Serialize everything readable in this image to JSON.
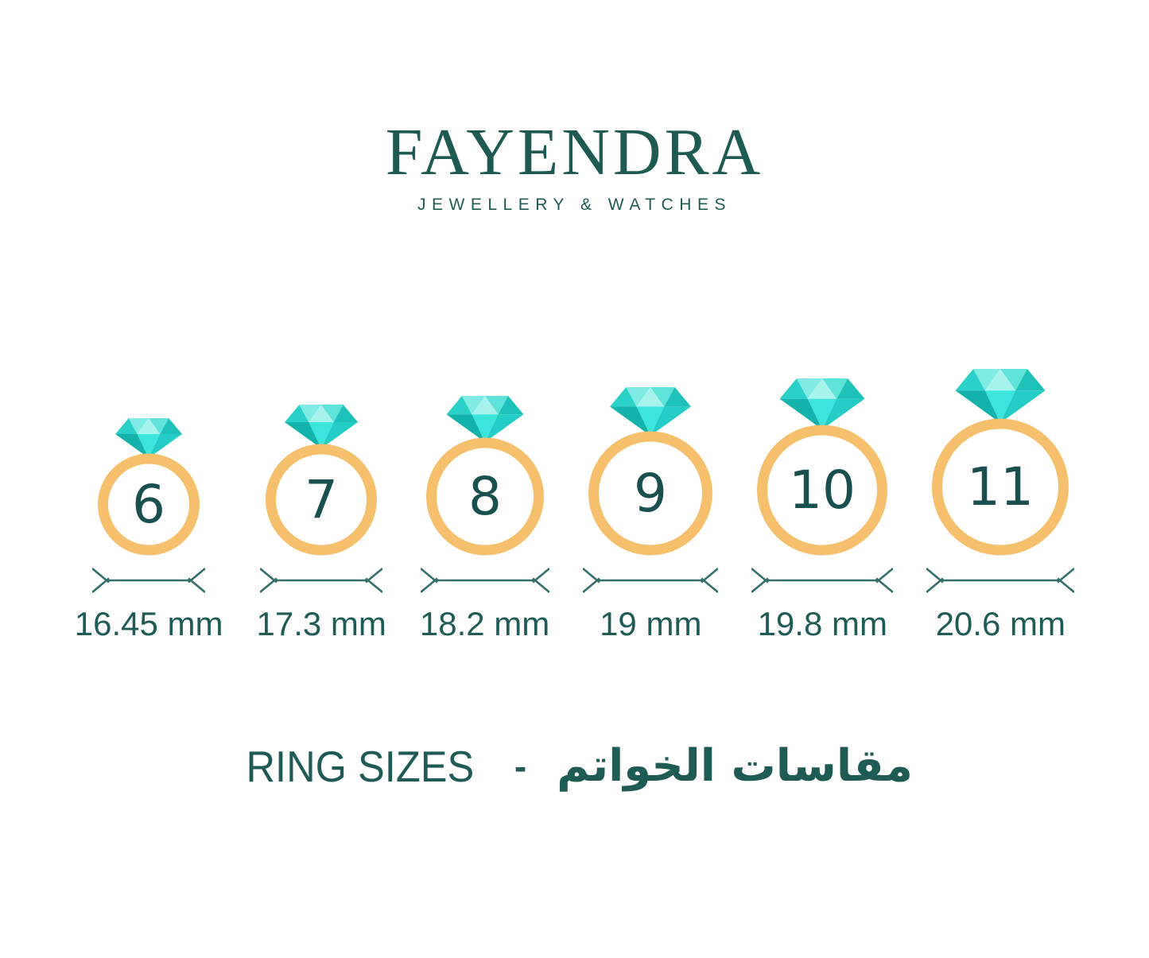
{
  "brand": {
    "name": "FAYENDRA",
    "tagline": "JEWELLERY & WATCHES"
  },
  "footer": {
    "title_latin": "RING SIZES",
    "separator": "-",
    "title_arabic": "مقاسات الخواتم"
  },
  "rings": [
    {
      "size": "6",
      "diameter": "16.45 mm",
      "display_diameter": 128
    },
    {
      "size": "7",
      "diameter": "17.3 mm",
      "display_diameter": 140
    },
    {
      "size": "8",
      "diameter": "18.2 mm",
      "display_diameter": 148
    },
    {
      "size": "9",
      "diameter": "19 mm",
      "display_diameter": 156
    },
    {
      "size": "10",
      "diameter": "19.8 mm",
      "display_diameter": 164
    },
    {
      "size": "11",
      "diameter": "20.6 mm",
      "display_diameter": 172
    }
  ],
  "colors": {
    "background": "#ffffff",
    "brand_teal": "#1C5A52",
    "number_teal": "#17504F",
    "label_teal": "#1E5B55",
    "line_teal": "#34706B",
    "band_orange": "#F6BF6C",
    "gem_facets": {
      "crown_left_slant": "#2BD1C9",
      "crown_left": "#7FEBE4",
      "crown_center": "#A9F3EE",
      "crown_right": "#5FE2DA",
      "crown_right_slant": "#1EC1B9",
      "pavilion_left": "#13B3AC",
      "pavilion_center": "#3BE5DC",
      "pavilion_right": "#23CCC4"
    }
  }
}
